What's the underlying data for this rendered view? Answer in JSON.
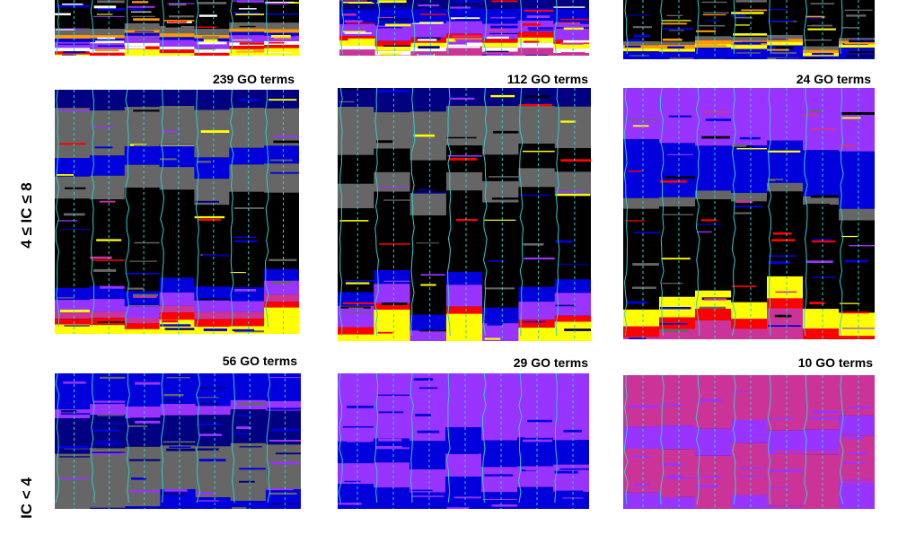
{
  "colors": {
    "black": "#000000",
    "gray": "#666666",
    "navy": "#000080",
    "blue": "#0000dd",
    "purple": "#9933ff",
    "magenta": "#cc3399",
    "red": "#ff0000",
    "orange": "#ff9900",
    "yellow": "#ffff00",
    "white": "#ffffff",
    "cyan_line": "#33cccc"
  },
  "row_labels": [
    "4 ≤ IC ≤ 8",
    "IC < 4"
  ],
  "chart_data": [
    {
      "type": "heatmap",
      "title": "",
      "columns": 7,
      "rows": [
        {
          "color": "black",
          "weight": 8
        },
        {
          "color": "gray",
          "weight": 2
        },
        {
          "color": "orange",
          "weight": 1
        },
        {
          "color": "blue",
          "weight": 1
        },
        {
          "color": "purple",
          "weight": 2
        },
        {
          "color": "white",
          "weight": 1
        },
        {
          "color": "red",
          "weight": 1
        },
        {
          "color": "yellow",
          "weight": 1
        }
      ]
    },
    {
      "type": "heatmap",
      "title": "",
      "columns": 7,
      "rows": [
        {
          "color": "navy",
          "weight": 2
        },
        {
          "color": "blue",
          "weight": 3
        },
        {
          "color": "purple",
          "weight": 3
        },
        {
          "color": "red",
          "weight": 1
        },
        {
          "color": "yellow",
          "weight": 1
        },
        {
          "color": "white",
          "weight": 1
        },
        {
          "color": "magenta",
          "weight": 1
        }
      ]
    },
    {
      "type": "heatmap",
      "title": "",
      "columns": 7,
      "rows": [
        {
          "color": "black",
          "weight": 12
        },
        {
          "color": "gray",
          "weight": 1
        },
        {
          "color": "orange",
          "weight": 1
        },
        {
          "color": "yellow",
          "weight": 1
        },
        {
          "color": "blue",
          "weight": 2
        }
      ]
    },
    {
      "type": "heatmap",
      "title": "239 GO terms",
      "columns": 7,
      "rows": [
        {
          "color": "navy",
          "weight": 3
        },
        {
          "color": "gray",
          "weight": 7
        },
        {
          "color": "blue",
          "weight": 3
        },
        {
          "color": "gray",
          "weight": 4
        },
        {
          "color": "black",
          "weight": 14
        },
        {
          "color": "blue",
          "weight": 2
        },
        {
          "color": "purple",
          "weight": 2
        },
        {
          "color": "magenta",
          "weight": 1
        },
        {
          "color": "red",
          "weight": 1
        },
        {
          "color": "yellow",
          "weight": 1
        }
      ]
    },
    {
      "type": "heatmap",
      "title": "112 GO terms",
      "columns": 7,
      "rows": [
        {
          "color": "navy",
          "weight": 3
        },
        {
          "color": "gray",
          "weight": 6
        },
        {
          "color": "black",
          "weight": 4
        },
        {
          "color": "gray",
          "weight": 3
        },
        {
          "color": "black",
          "weight": 13
        },
        {
          "color": "blue",
          "weight": 2
        },
        {
          "color": "purple",
          "weight": 3
        },
        {
          "color": "red",
          "weight": 1
        },
        {
          "color": "yellow",
          "weight": 1
        }
      ]
    },
    {
      "type": "heatmap",
      "title": "24 GO terms",
      "columns": 7,
      "rows": [
        {
          "color": "purple",
          "weight": 6
        },
        {
          "color": "blue",
          "weight": 5
        },
        {
          "color": "gray",
          "weight": 1
        },
        {
          "color": "black",
          "weight": 9
        },
        {
          "color": "yellow",
          "weight": 2
        },
        {
          "color": "red",
          "weight": 1
        },
        {
          "color": "magenta",
          "weight": 1
        }
      ]
    },
    {
      "type": "heatmap",
      "title": "56 GO terms",
      "columns": 7,
      "rows": [
        {
          "color": "blue",
          "weight": 3
        },
        {
          "color": "purple",
          "weight": 1
        },
        {
          "color": "navy",
          "weight": 3
        },
        {
          "color": "gray",
          "weight": 5
        },
        {
          "color": "blue",
          "weight": 1
        }
      ]
    },
    {
      "type": "heatmap",
      "title": "29 GO terms",
      "columns": 7,
      "rows": [
        {
          "color": "purple",
          "weight": 5
        },
        {
          "color": "blue",
          "weight": 2
        },
        {
          "color": "purple",
          "weight": 2
        },
        {
          "color": "blue",
          "weight": 2
        }
      ]
    },
    {
      "type": "heatmap",
      "title": "10 GO terms",
      "columns": 7,
      "rows": [
        {
          "color": "magenta",
          "weight": 4
        },
        {
          "color": "purple",
          "weight": 2
        },
        {
          "color": "magenta",
          "weight": 4
        },
        {
          "color": "purple",
          "weight": 1
        }
      ]
    }
  ]
}
